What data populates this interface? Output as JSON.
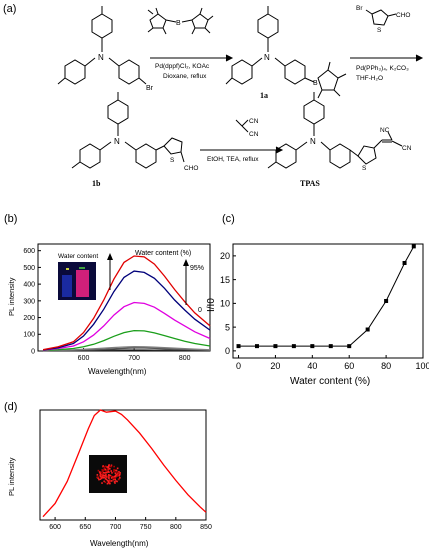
{
  "scheme": {
    "panel_label": "(a)",
    "reagents_step1": [
      "Pd(dppf)Cl₂, KOAc",
      "Dioxane, reflux"
    ],
    "reagents_step2": [
      "Pd(PPh₃)₄, K₂CO₃",
      "THF-H₂O"
    ],
    "reagents_step3": [
      "EtOH, TEA, reflux"
    ],
    "atom_labels": {
      "N": "N",
      "B": "B",
      "O": "O",
      "Br": "Br",
      "S": "S",
      "CHO": "CHO",
      "CN": "CN",
      "NC": "NC"
    },
    "compounds": {
      "c1a": "1a",
      "c1b": "1b",
      "tpas": "TPAS"
    }
  },
  "colors": {
    "c0": "#2b2b2b",
    "c10": "#555555",
    "c40": "#808080",
    "c60": "#1a9e1a",
    "c70": "#e000e0",
    "c80": "#00007a",
    "c95": "#e00000",
    "solid_red": "#ff0000",
    "line_black": "#000000"
  },
  "chart_data": [
    {
      "type": "line",
      "panel_label": "(b)",
      "xlabel": "Wavelength(nm)",
      "ylabel": "PL intensity",
      "xlim": [
        510,
        850
      ],
      "ylim": [
        0,
        640
      ],
      "xticks": [
        600,
        700,
        800
      ],
      "yticks": [
        0,
        100,
        200,
        300,
        400,
        500,
        600
      ],
      "annotations": {
        "legend_title": "Water content (%)",
        "top_label": "95%",
        "bottom_label": "0",
        "inset_label": "Water content"
      },
      "x": [
        520,
        550,
        580,
        600,
        620,
        640,
        660,
        680,
        700,
        720,
        740,
        760,
        780,
        800,
        820,
        850
      ],
      "series": [
        {
          "values": [
            3,
            3,
            3,
            4,
            4,
            5,
            5,
            6,
            6,
            6,
            5,
            5,
            4,
            4,
            3,
            3
          ]
        },
        {
          "values": [
            3,
            4,
            5,
            6,
            8,
            10,
            13,
            16,
            18,
            18,
            16,
            14,
            12,
            10,
            8,
            5
          ]
        },
        {
          "values": [
            3,
            5,
            7,
            10,
            13,
            17,
            21,
            24,
            26,
            25,
            23,
            20,
            17,
            14,
            11,
            7
          ]
        },
        {
          "values": [
            4,
            8,
            15,
            25,
            40,
            62,
            88,
            110,
            122,
            120,
            108,
            92,
            75,
            58,
            45,
            30
          ]
        },
        {
          "values": [
            5,
            15,
            30,
            55,
            95,
            150,
            215,
            265,
            290,
            285,
            262,
            225,
            185,
            150,
            115,
            75
          ]
        },
        {
          "values": [
            6,
            20,
            45,
            90,
            160,
            250,
            355,
            440,
            478,
            470,
            435,
            375,
            305,
            245,
            190,
            125
          ]
        },
        {
          "values": [
            8,
            25,
            55,
            110,
            195,
            305,
            430,
            530,
            568,
            563,
            520,
            448,
            368,
            295,
            228,
            150
          ]
        }
      ]
    },
    {
      "type": "line",
      "panel_label": "(c)",
      "xlabel": "Water content (%)",
      "ylabel": "I/I0",
      "xlim": [
        -3,
        100
      ],
      "ylim": [
        -1.5,
        22.5
      ],
      "xticks": [
        0,
        20,
        40,
        60,
        80,
        100
      ],
      "yticks": [
        0,
        5,
        10,
        15,
        20
      ],
      "x": [
        0,
        10,
        20,
        30,
        40,
        50,
        60,
        70,
        80,
        90,
        95
      ],
      "values": [
        1,
        1,
        1,
        1,
        1,
        1,
        1,
        4.5,
        10.5,
        18.5,
        22
      ]
    },
    {
      "type": "line",
      "panel_label": "(d)",
      "xlabel": "Wavelength(nm)",
      "ylabel": "PL intensity",
      "xlim": [
        575,
        850
      ],
      "ylim": [
        0,
        1
      ],
      "xticks": [
        600,
        650,
        700,
        750,
        800,
        850
      ],
      "x": [
        580,
        600,
        620,
        640,
        655,
        665,
        675,
        685,
        700,
        710,
        720,
        740,
        760,
        780,
        800,
        820,
        840,
        850
      ],
      "values": [
        0.03,
        0.15,
        0.35,
        0.62,
        0.83,
        0.95,
        1.0,
        0.98,
        0.99,
        0.96,
        0.91,
        0.79,
        0.65,
        0.5,
        0.36,
        0.23,
        0.12,
        0.07
      ]
    }
  ]
}
